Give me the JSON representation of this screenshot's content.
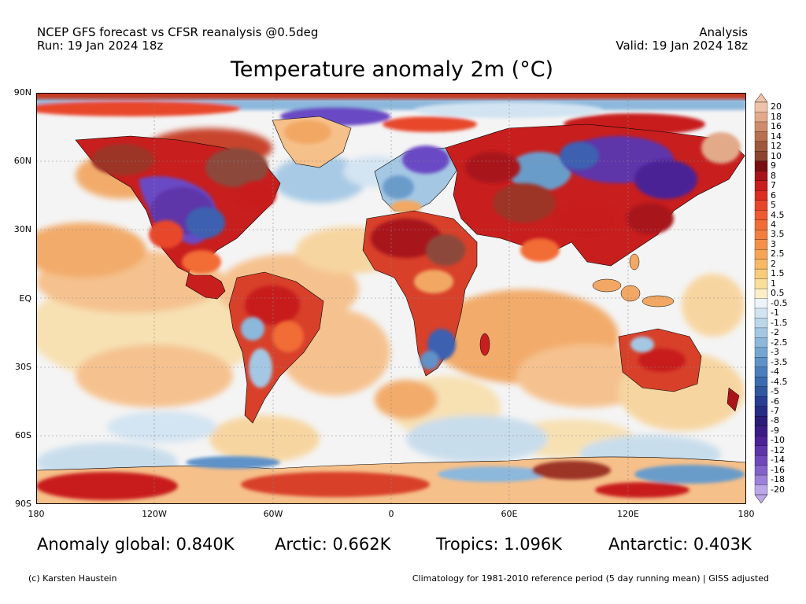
{
  "header": {
    "left_line1": "NCEP GFS forecast vs CFSR reanalysis @0.5deg",
    "left_line2": "Run: 19 Jan 2024 18z",
    "right_line1": "Analysis",
    "right_line2": "Valid: 19 Jan 2024 18z"
  },
  "title": "Temperature anomaly 2m (°C)",
  "map": {
    "lat_labels": [
      "90N",
      "60N",
      "30N",
      "EQ",
      "30S",
      "60S",
      "90S"
    ],
    "lon_labels": [
      "180",
      "120W",
      "60W",
      "0",
      "60E",
      "120E",
      "180"
    ],
    "colors": {
      "neutral": "#f4f4f4",
      "warm_light": "#f8e0b0",
      "warm_mid": "#f2a864",
      "warm_strong": "#d8402a",
      "warm_extreme": "#9c3428",
      "hot_brown": "#8c4a3a",
      "cold_light": "#c6dcec",
      "cold_mid": "#6a9cca",
      "cold_strong": "#3c60b0",
      "cold_extreme": "#6a48c4"
    }
  },
  "colorbar": {
    "labels": [
      "20",
      "18",
      "16",
      "14",
      "12",
      "10",
      "9",
      "8",
      "7",
      "6",
      "5",
      "4.5",
      "4",
      "3.5",
      "3",
      "2.5",
      "2",
      "1.5",
      "1",
      "0.5",
      "-0.5",
      "-1",
      "-1.5",
      "-2",
      "-2.5",
      "-3",
      "-3.5",
      "-4",
      "-4.5",
      "-5",
      "-6",
      "-7",
      "-8",
      "-9",
      "-10",
      "-12",
      "-14",
      "-16",
      "-18",
      "-20"
    ],
    "colors": [
      "#efc3a8",
      "#e3aa8a",
      "#cf8c6a",
      "#b8704e",
      "#a0583c",
      "#8c4630",
      "#7a0e10",
      "#a8141a",
      "#c81e1e",
      "#dc2e22",
      "#e8462a",
      "#ef5a30",
      "#f26c36",
      "#f47e3e",
      "#f69048",
      "#f7a454",
      "#f8b864",
      "#f9cc7c",
      "#fadf9c",
      "#fcefc8",
      "#ecf3fa",
      "#d2e4f2",
      "#bbd7ec",
      "#a4c8e4",
      "#8cb8dc",
      "#74a6d2",
      "#5e92c8",
      "#4a7ebd",
      "#3c6cb0",
      "#3058a0",
      "#283e94",
      "#262c86",
      "#2a1c78",
      "#3a1c86",
      "#4c2296",
      "#5e34aa",
      "#7048bc",
      "#8462cc",
      "#9c80da",
      "#bca8e8"
    ]
  },
  "stats": {
    "global": "Anomaly global: 0.840K",
    "arctic": "Arctic: 0.662K",
    "tropics": "Tropics: 1.096K",
    "antarctic": "Antarctic: 0.403K"
  },
  "footer": {
    "left": "(c) Karsten Haustein",
    "right": "Climatology for 1981-2010 reference period (5 day running mean) | GISS adjusted"
  }
}
